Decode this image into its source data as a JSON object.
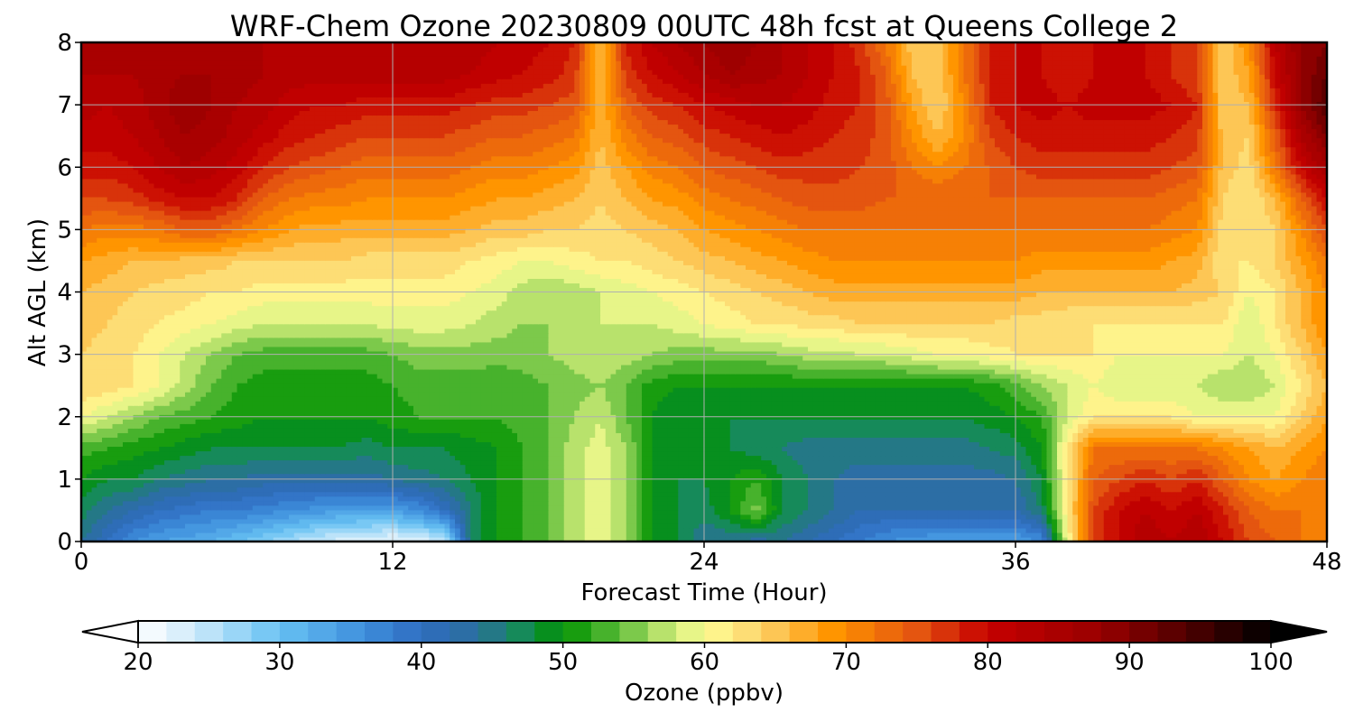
{
  "chart_data": {
    "type": "heatmap",
    "plot_style": "filled contour (time-height cross section)",
    "title": "WRF-Chem Ozone  20230809 00UTC 48h fcst at Queens College 2",
    "xlabel": "Forecast Time (Hour)",
    "ylabel": "Alt AGL (km)",
    "xlim": [
      0,
      48
    ],
    "ylim": [
      0,
      8
    ],
    "xticks": [
      0,
      12,
      24,
      36,
      48
    ],
    "yticks": [
      0,
      1,
      2,
      3,
      4,
      5,
      6,
      7,
      8
    ],
    "grid": true,
    "colorbar": {
      "orientation": "horizontal",
      "position": "below",
      "label": "Ozone  (ppbv)",
      "range": [
        20,
        100
      ],
      "step": 2,
      "extend": "both",
      "ticks": [
        20,
        30,
        40,
        50,
        60,
        70,
        80,
        90,
        100
      ],
      "color_stops": [
        {
          "value": 20,
          "color": "#ffffff"
        },
        {
          "value": 24,
          "color": "#cdeafa"
        },
        {
          "value": 30,
          "color": "#67c1f3"
        },
        {
          "value": 36,
          "color": "#3e8fdc"
        },
        {
          "value": 40,
          "color": "#2f6cc0"
        },
        {
          "value": 44,
          "color": "#2b6f9c"
        },
        {
          "value": 47,
          "color": "#168a5a"
        },
        {
          "value": 50,
          "color": "#009200"
        },
        {
          "value": 54,
          "color": "#5ebd3a"
        },
        {
          "value": 57,
          "color": "#b8e26c"
        },
        {
          "value": 60,
          "color": "#fffe96"
        },
        {
          "value": 64,
          "color": "#fcd26a"
        },
        {
          "value": 69,
          "color": "#ff9500"
        },
        {
          "value": 75,
          "color": "#e45510"
        },
        {
          "value": 80,
          "color": "#c60000"
        },
        {
          "value": 88,
          "color": "#980000"
        },
        {
          "value": 94,
          "color": "#500000"
        },
        {
          "value": 100,
          "color": "#000000"
        }
      ]
    },
    "field": {
      "hours": [
        0,
        1,
        2,
        3,
        4,
        5,
        6,
        7,
        8,
        9,
        10,
        11,
        12,
        13,
        14,
        15,
        16,
        17,
        18,
        19,
        20,
        21,
        22,
        23,
        24,
        25,
        26,
        27,
        28,
        29,
        30,
        31,
        32,
        33,
        34,
        35,
        36,
        37,
        38,
        39,
        40,
        41,
        42,
        43,
        44,
        45,
        46,
        47,
        48
      ],
      "altitudes_km": [
        0,
        0.5,
        1,
        1.5,
        2,
        2.5,
        3,
        3.5,
        4,
        4.5,
        5,
        5.5,
        6,
        6.5,
        7,
        7.5,
        8
      ],
      "ozone_ppbv": [
        [
          44,
          40,
          36,
          34,
          33,
          32,
          30,
          28,
          26,
          24,
          23,
          22,
          21,
          22,
          24,
          46,
          50,
          52,
          54,
          57,
          59,
          56,
          50,
          48,
          44,
          44,
          43,
          44,
          42,
          40,
          38,
          36,
          35,
          34,
          34,
          34,
          34,
          36,
          60,
          76,
          80,
          84,
          82,
          84,
          80,
          76,
          74,
          72,
          70
        ],
        [
          47,
          44,
          42,
          40,
          39,
          38,
          38,
          37,
          36,
          35,
          34,
          34,
          34,
          36,
          40,
          46,
          50,
          52,
          54,
          57,
          59,
          56,
          50,
          48,
          47,
          50,
          55,
          48,
          46,
          44,
          42,
          42,
          42,
          42,
          42,
          42,
          42,
          46,
          62,
          76,
          80,
          82,
          80,
          82,
          78,
          74,
          72,
          72,
          70
        ],
        [
          50,
          48,
          48,
          46,
          45,
          44,
          44,
          43,
          43,
          43,
          43,
          43,
          44,
          45,
          46,
          48,
          50,
          52,
          54,
          57,
          59,
          56,
          50,
          48,
          48,
          50,
          52,
          48,
          46,
          44,
          43,
          43,
          43,
          43,
          43,
          43,
          44,
          48,
          62,
          74,
          76,
          78,
          76,
          78,
          74,
          70,
          68,
          70,
          72
        ],
        [
          53,
          52,
          51,
          50,
          49,
          48,
          48,
          48,
          48,
          48,
          48,
          47,
          48,
          48,
          48,
          49,
          50,
          52,
          54,
          57,
          59,
          56,
          50,
          48,
          48,
          48,
          47,
          46,
          45,
          45,
          45,
          45,
          45,
          45,
          45,
          46,
          47,
          50,
          62,
          72,
          72,
          72,
          72,
          72,
          70,
          68,
          66,
          68,
          70
        ],
        [
          60,
          58,
          56,
          54,
          53,
          52,
          51,
          50,
          50,
          50,
          50,
          50,
          51,
          52,
          52,
          52,
          52,
          53,
          54,
          56,
          58,
          54,
          50,
          48,
          48,
          48,
          48,
          48,
          48,
          48,
          48,
          48,
          48,
          48,
          48,
          49,
          50,
          52,
          58,
          62,
          62,
          62,
          62,
          60,
          60,
          60,
          60,
          64,
          68
        ],
        [
          64,
          63,
          62,
          60,
          57,
          54,
          52,
          51,
          51,
          51,
          51,
          51,
          52,
          53,
          53,
          53,
          52,
          53,
          54,
          55,
          56,
          54,
          51,
          50,
          50,
          50,
          50,
          50,
          50,
          50,
          50,
          50,
          50,
          50,
          50,
          51,
          53,
          56,
          58,
          60,
          58,
          58,
          58,
          58,
          56,
          56,
          58,
          62,
          66
        ],
        [
          64,
          63,
          62,
          60,
          58,
          56,
          54,
          53,
          53,
          53,
          53,
          53,
          54,
          55,
          55,
          55,
          55,
          55,
          56,
          57,
          58,
          57,
          56,
          55,
          55,
          55,
          55,
          56,
          57,
          57,
          58,
          58,
          59,
          60,
          60,
          61,
          62,
          62,
          62,
          62,
          60,
          60,
          60,
          60,
          60,
          58,
          60,
          64,
          68
        ],
        [
          65,
          64,
          63,
          62,
          61,
          60,
          59,
          58,
          58,
          58,
          58,
          58,
          59,
          59,
          59,
          58,
          57,
          56,
          56,
          57,
          58,
          58,
          58,
          59,
          60,
          61,
          62,
          62,
          63,
          63,
          64,
          64,
          64,
          64,
          64,
          64,
          63,
          63,
          62,
          62,
          62,
          62,
          62,
          62,
          62,
          58,
          62,
          66,
          70
        ],
        [
          66,
          65,
          64,
          63,
          63,
          62,
          62,
          61,
          61,
          61,
          61,
          61,
          61,
          61,
          61,
          60,
          59,
          57,
          56,
          57,
          58,
          59,
          60,
          61,
          62,
          63,
          64,
          65,
          66,
          67,
          67,
          67,
          67,
          67,
          67,
          67,
          67,
          66,
          66,
          66,
          66,
          66,
          66,
          65,
          64,
          60,
          62,
          66,
          70
        ],
        [
          68,
          67,
          66,
          66,
          65,
          65,
          64,
          64,
          64,
          64,
          64,
          63,
          63,
          63,
          63,
          62,
          61,
          60,
          60,
          61,
          62,
          62,
          63,
          64,
          65,
          66,
          67,
          68,
          69,
          70,
          70,
          70,
          70,
          70,
          70,
          70,
          70,
          69,
          69,
          69,
          69,
          69,
          68,
          67,
          62,
          62,
          64,
          68,
          72
        ],
        [
          72,
          71,
          71,
          72,
          74,
          74,
          72,
          70,
          68,
          67,
          67,
          67,
          67,
          67,
          67,
          66,
          65,
          65,
          64,
          64,
          63,
          64,
          65,
          66,
          68,
          69,
          70,
          71,
          72,
          72,
          72,
          72,
          72,
          72,
          72,
          72,
          72,
          72,
          72,
          72,
          72,
          72,
          71,
          70,
          63,
          62,
          64,
          70,
          76
        ],
        [
          76,
          76,
          77,
          79,
          80,
          80,
          78,
          74,
          72,
          71,
          71,
          70,
          70,
          70,
          70,
          69,
          68,
          68,
          67,
          66,
          64,
          66,
          68,
          69,
          71,
          72,
          73,
          74,
          75,
          75,
          75,
          74,
          74,
          74,
          74,
          74,
          74,
          74,
          74,
          74,
          74,
          74,
          73,
          72,
          64,
          62,
          66,
          74,
          80
        ],
        [
          79,
          79,
          80,
          82,
          84,
          83,
          81,
          78,
          76,
          75,
          74,
          73,
          73,
          73,
          73,
          72,
          71,
          71,
          70,
          69,
          65,
          68,
          71,
          72,
          74,
          75,
          76,
          77,
          77,
          77,
          76,
          75,
          72,
          70,
          72,
          74,
          76,
          77,
          77,
          77,
          77,
          77,
          76,
          75,
          65,
          63,
          72,
          80,
          86
        ],
        [
          81,
          81,
          82,
          84,
          86,
          85,
          83,
          81,
          79,
          78,
          77,
          76,
          76,
          76,
          76,
          75,
          74,
          74,
          73,
          72,
          66,
          71,
          74,
          75,
          77,
          78,
          79,
          80,
          79,
          78,
          77,
          75,
          70,
          66,
          70,
          76,
          78,
          79,
          79,
          79,
          79,
          79,
          78,
          77,
          65,
          64,
          74,
          84,
          90
        ],
        [
          83,
          82,
          83,
          85,
          88,
          86,
          84,
          83,
          81,
          80,
          80,
          79,
          79,
          79,
          79,
          78,
          77,
          77,
          76,
          75,
          66,
          74,
          77,
          78,
          80,
          81,
          82,
          82,
          81,
          79,
          78,
          75,
          68,
          64,
          70,
          78,
          80,
          81,
          80,
          81,
          81,
          81,
          80,
          78,
          64,
          66,
          78,
          88,
          94
        ],
        [
          84,
          84,
          84,
          85,
          86,
          86,
          85,
          84,
          83,
          83,
          83,
          83,
          83,
          83,
          83,
          82,
          81,
          80,
          79,
          77,
          66,
          77,
          80,
          82,
          84,
          86,
          85,
          84,
          82,
          80,
          78,
          74,
          66,
          64,
          72,
          78,
          80,
          80,
          78,
          80,
          80,
          80,
          78,
          76,
          64,
          68,
          80,
          88,
          92
        ],
        [
          84,
          84,
          84,
          84,
          84,
          84,
          84,
          84,
          84,
          84,
          84,
          84,
          84,
          84,
          84,
          83,
          82,
          81,
          80,
          78,
          66,
          78,
          82,
          84,
          86,
          88,
          86,
          84,
          82,
          80,
          77,
          72,
          65,
          64,
          72,
          78,
          80,
          80,
          78,
          80,
          80,
          80,
          78,
          76,
          64,
          70,
          82,
          88,
          90
        ]
      ]
    }
  }
}
